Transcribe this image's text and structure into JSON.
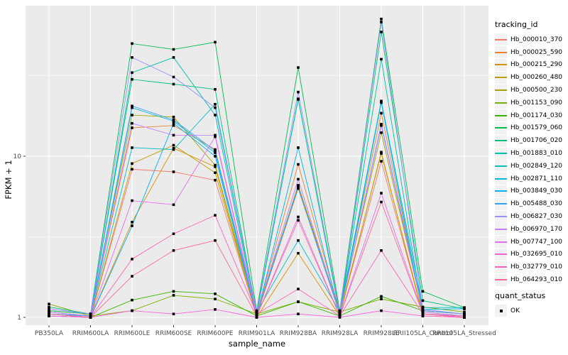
{
  "chart_data": {
    "type": "line",
    "xlabel": "sample_name",
    "ylabel": "FPKM + 1",
    "y_scale": "log10",
    "ylim": [
      0.92,
      85
    ],
    "y_ticks": [
      {
        "value": 1,
        "label": "1"
      },
      {
        "value": 10,
        "label": "10"
      }
    ],
    "y_minor_ticks": [
      3.162,
      31.62
    ],
    "panel_background": "#EBEBEB",
    "grid_color": "#FFFFFF",
    "tick_label_color": "#4D4D4D",
    "point_color": "#000000",
    "point_shape": "square",
    "categories": [
      "PB350LA",
      "RRIM600LA",
      "RRIM600LE",
      "RRIM600SE",
      "RRIM600PE",
      "RRIM901LA",
      "RRIM928BA",
      "RRIM928LA",
      "RRIM928LE",
      "RRII105LA_Control",
      "RRII105LA_Stressed"
    ],
    "series": [
      {
        "name": "Hb_000010_370",
        "color": "#F8766D",
        "values": [
          1.05,
          1.0,
          8.3,
          8.0,
          7.1,
          1.02,
          6.3,
          1.05,
          9.3,
          1.05,
          1.0
        ]
      },
      {
        "name": "Hb_000025_590",
        "color": "#EA8331",
        "values": [
          1.08,
          1.02,
          15.0,
          15.5,
          11.0,
          1.05,
          8.9,
          1.08,
          18.5,
          1.08,
          1.02
        ]
      },
      {
        "name": "Hb_000215_290",
        "color": "#D89000",
        "values": [
          1.02,
          1.0,
          3.9,
          11.2,
          8.6,
          1.0,
          2.5,
          1.02,
          10.6,
          1.02,
          1.0
        ]
      },
      {
        "name": "Hb_000260_480",
        "color": "#C09B00",
        "values": [
          1.05,
          1.0,
          9.0,
          11.7,
          7.9,
          1.02,
          6.5,
          1.05,
          10.4,
          1.05,
          1.0
        ]
      },
      {
        "name": "Hb_000500_230",
        "color": "#A3A500",
        "values": [
          1.1,
          1.05,
          18.0,
          17.5,
          8.8,
          1.05,
          6.6,
          1.1,
          14.0,
          1.1,
          1.05
        ]
      },
      {
        "name": "Hb_001153_090",
        "color": "#7CAE00",
        "values": [
          1.21,
          1.02,
          1.1,
          1.37,
          1.3,
          1.05,
          1.25,
          1.08,
          1.3,
          1.16,
          1.08
        ]
      },
      {
        "name": "Hb_001174_030",
        "color": "#39B600",
        "values": [
          1.05,
          1.0,
          1.28,
          1.45,
          1.4,
          1.02,
          1.25,
          1.02,
          1.35,
          1.1,
          1.05
        ]
      },
      {
        "name": "Hb_001579_060",
        "color": "#00BB4E",
        "values": [
          1.1,
          1.05,
          50,
          46,
          51,
          1.1,
          35.5,
          1.1,
          71,
          1.45,
          1.15
        ]
      },
      {
        "name": "Hb_001706_020",
        "color": "#00BF7D",
        "values": [
          1.16,
          1.05,
          30,
          28,
          26,
          1.05,
          22.5,
          1.05,
          59,
          1.27,
          1.13
        ]
      },
      {
        "name": "Hb_001883_010",
        "color": "#00C1A3",
        "values": [
          1.05,
          1.02,
          33,
          41,
          18,
          1.05,
          22.7,
          1.05,
          40,
          1.05,
          1.02
        ]
      },
      {
        "name": "Hb_002849_120",
        "color": "#00BFC4",
        "values": [
          1.08,
          1.02,
          11.3,
          11.0,
          21,
          1.08,
          3.0,
          1.08,
          22,
          1.15,
          1.15
        ]
      },
      {
        "name": "Hb_002871_110",
        "color": "#00BAE0",
        "values": [
          1.05,
          1.0,
          20,
          16.5,
          10.5,
          1.05,
          6.4,
          1.05,
          15.6,
          1.12,
          1.13
        ]
      },
      {
        "name": "Hb_003849_030",
        "color": "#00B0F6",
        "values": [
          1.02,
          1.0,
          3.7,
          16.0,
          10.0,
          1.02,
          11.3,
          1.02,
          21.5,
          1.05,
          1.02
        ]
      },
      {
        "name": "Hb_005488_030",
        "color": "#35A2FF",
        "values": [
          1.05,
          1.02,
          20.5,
          16.8,
          10.8,
          1.05,
          6.4,
          1.05,
          15.8,
          1.1,
          1.05
        ]
      },
      {
        "name": "Hb_006827_030",
        "color": "#9590FF",
        "values": [
          1.13,
          1.05,
          41,
          31,
          20,
          1.08,
          25,
          1.08,
          68,
          1.12,
          1.05
        ]
      },
      {
        "name": "Hb_006970_170",
        "color": "#C77CFF",
        "values": [
          1.08,
          1.02,
          16.0,
          13.5,
          13.5,
          1.05,
          7.2,
          1.05,
          15.5,
          1.08,
          1.02
        ]
      },
      {
        "name": "Hb_007747_100",
        "color": "#E76BF3",
        "values": [
          1.05,
          1.0,
          5.3,
          5.0,
          13.2,
          1.02,
          4.2,
          1.02,
          5.9,
          1.05,
          1.0
        ]
      },
      {
        "name": "Hb_032695_010",
        "color": "#FA62DB",
        "values": [
          1.02,
          1.0,
          1.1,
          1.05,
          1.12,
          1.0,
          1.05,
          1.0,
          1.1,
          1.02,
          1.0
        ]
      },
      {
        "name": "Hb_032779_010",
        "color": "#FF62BC",
        "values": [
          1.05,
          1.0,
          2.3,
          3.3,
          4.3,
          1.05,
          1.5,
          1.02,
          2.6,
          1.05,
          1.02
        ]
      },
      {
        "name": "Hb_064293_010",
        "color": "#FF6A98",
        "values": [
          1.05,
          1.0,
          1.8,
          2.6,
          3.0,
          1.02,
          4.0,
          1.02,
          5.2,
          1.05,
          1.0
        ]
      }
    ],
    "legends": [
      {
        "title": "tracking_id",
        "type": "line"
      },
      {
        "title": "quant_status",
        "type": "point",
        "items": [
          {
            "label": "OK",
            "color": "#000000"
          }
        ]
      }
    ]
  }
}
